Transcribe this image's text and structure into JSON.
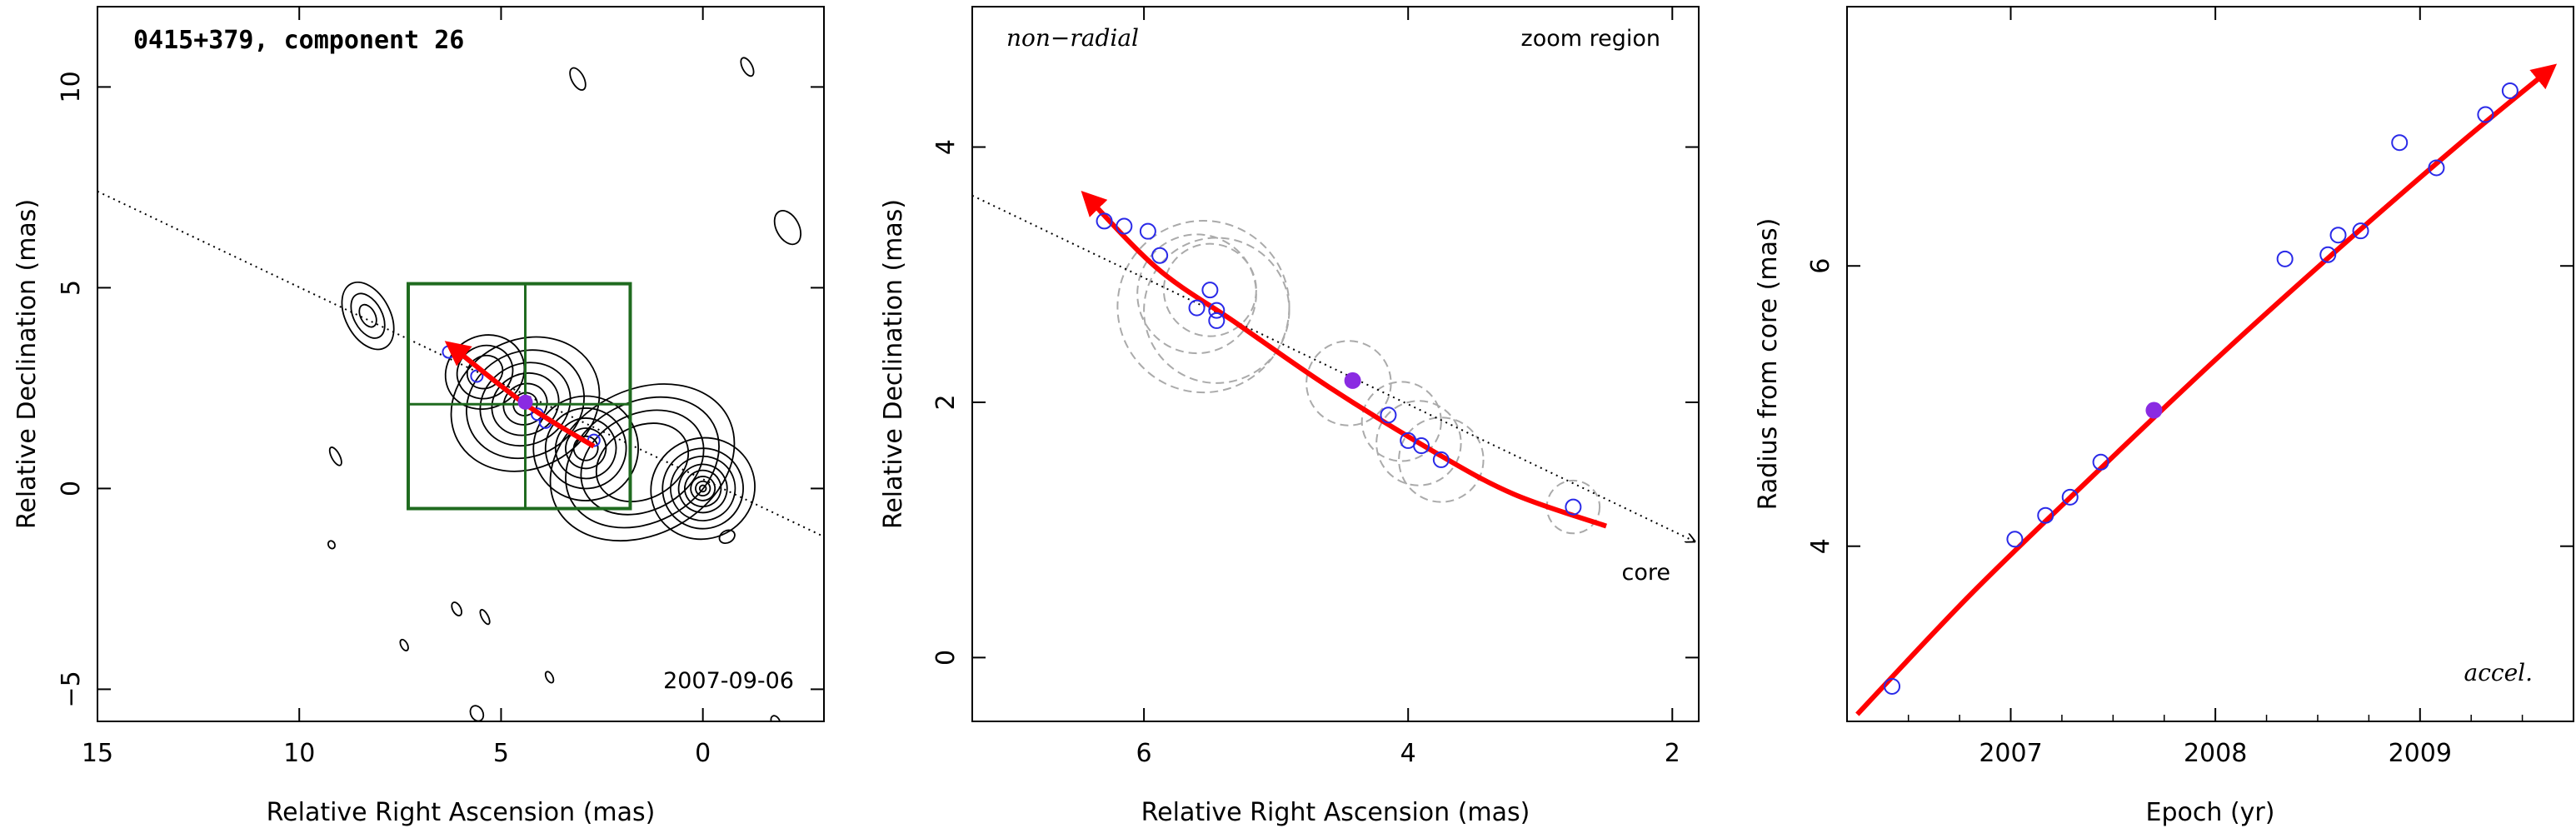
{
  "colors": {
    "trajectory": "#ff0000",
    "points": "#2a2ae8",
    "highlight": "#8a2be2",
    "box": "#1f6b1f",
    "circles": "#aaaaaa",
    "contours": "#000000"
  },
  "chart_data": [
    {
      "type": "contour",
      "title": "0415+379, component 26",
      "date_label": "2007-09-06",
      "xlabel": "Relative Right Ascension (mas)",
      "ylabel": "Relative Declination (mas)",
      "xlim": [
        15,
        -3
      ],
      "ylim": [
        -5.8,
        12
      ],
      "xticks": [
        "15",
        "10",
        "5",
        "0"
      ],
      "yticks": [
        "−5",
        "0",
        "5",
        "10"
      ],
      "direction_line": [
        [
          15,
          7.4
        ],
        [
          -3,
          -1.2
        ]
      ],
      "zoom_box": {
        "x": [
          7.3,
          1.8
        ],
        "y": [
          -0.5,
          5.1
        ],
        "grid_x": 4.4,
        "grid_y": 2.1
      },
      "trajectory": {
        "x": [
          6.3,
          4.4,
          2.7
        ],
        "y": [
          3.6,
          2.1,
          1.05
        ]
      },
      "component_position": {
        "x": 4.4,
        "y": 2.15
      },
      "points": [
        {
          "x": 6.3,
          "y": 3.4
        },
        {
          "x": 5.6,
          "y": 2.8
        },
        {
          "x": 4.1,
          "y": 1.85
        },
        {
          "x": 3.9,
          "y": 1.65
        },
        {
          "x": 2.7,
          "y": 1.2
        }
      ]
    },
    {
      "type": "scatter",
      "label_left": "non−radial",
      "label_right": "zoom region",
      "core_label": "core",
      "xlabel": "Relative Right Ascension (mas)",
      "ylabel": "Relative Declination (mas)",
      "xlim": [
        7.3,
        1.8
      ],
      "ylim": [
        -0.5,
        5.1
      ],
      "xticks": [
        "6",
        "4",
        "2"
      ],
      "yticks": [
        "0",
        "2",
        "4"
      ],
      "direction_line": [
        [
          7.3,
          3.62
        ],
        [
          1.8,
          0.9
        ]
      ],
      "trajectory": {
        "x": [
          6.45,
          5.9,
          5.3,
          4.6,
          3.8,
          3.2,
          2.5
        ],
        "y": [
          3.63,
          3.05,
          2.62,
          2.12,
          1.61,
          1.28,
          1.03
        ]
      },
      "points": [
        {
          "x": 6.3,
          "y": 3.42
        },
        {
          "x": 6.15,
          "y": 3.38
        },
        {
          "x": 5.97,
          "y": 3.34
        },
        {
          "x": 5.88,
          "y": 3.15
        },
        {
          "x": 5.6,
          "y": 2.74
        },
        {
          "x": 5.5,
          "y": 2.88
        },
        {
          "x": 5.45,
          "y": 2.72
        },
        {
          "x": 5.45,
          "y": 2.64
        },
        {
          "x": 4.15,
          "y": 1.9
        },
        {
          "x": 4.0,
          "y": 1.7
        },
        {
          "x": 3.9,
          "y": 1.66
        },
        {
          "x": 3.75,
          "y": 1.55
        },
        {
          "x": 2.75,
          "y": 1.18
        }
      ],
      "highlight_point": {
        "x": 4.42,
        "y": 2.17
      },
      "circles": [
        {
          "x": 5.55,
          "y": 2.75,
          "r": 0.65
        },
        {
          "x": 5.45,
          "y": 2.72,
          "r": 0.55
        },
        {
          "x": 5.6,
          "y": 2.85,
          "r": 0.45
        },
        {
          "x": 5.5,
          "y": 2.88,
          "r": 0.35
        },
        {
          "x": 4.45,
          "y": 2.15,
          "r": 0.32
        },
        {
          "x": 4.05,
          "y": 1.85,
          "r": 0.3
        },
        {
          "x": 3.92,
          "y": 1.68,
          "r": 0.32
        },
        {
          "x": 3.75,
          "y": 1.55,
          "r": 0.32
        },
        {
          "x": 2.75,
          "y": 1.18,
          "r": 0.2
        }
      ]
    },
    {
      "type": "scatter",
      "label_corner": "accel.",
      "xlabel": "Epoch (yr)",
      "ylabel": "Radius from core (mas)",
      "xlim": [
        2006.2,
        2009.75
      ],
      "ylim": [
        2.75,
        7.85
      ],
      "xticks": [
        "2007",
        "2008",
        "2009"
      ],
      "yticks": [
        "4",
        "6"
      ],
      "trajectory": {
        "x": [
          2006.25,
          2006.8,
          2007.4,
          2008.0,
          2008.6,
          2009.2,
          2009.65
        ],
        "y": [
          2.8,
          3.65,
          4.5,
          5.33,
          6.12,
          6.88,
          7.42
        ]
      },
      "points": [
        {
          "x": 2006.42,
          "y": 3.0
        },
        {
          "x": 2007.02,
          "y": 4.05
        },
        {
          "x": 2007.17,
          "y": 4.22
        },
        {
          "x": 2007.29,
          "y": 4.35
        },
        {
          "x": 2007.44,
          "y": 4.6
        },
        {
          "x": 2008.34,
          "y": 6.05
        },
        {
          "x": 2008.55,
          "y": 6.08
        },
        {
          "x": 2008.6,
          "y": 6.22
        },
        {
          "x": 2008.71,
          "y": 6.25
        },
        {
          "x": 2008.9,
          "y": 6.88
        },
        {
          "x": 2009.08,
          "y": 6.7
        },
        {
          "x": 2009.32,
          "y": 7.08
        },
        {
          "x": 2009.44,
          "y": 7.25
        }
      ],
      "highlight_point": {
        "x": 2007.7,
        "y": 4.97
      }
    }
  ]
}
